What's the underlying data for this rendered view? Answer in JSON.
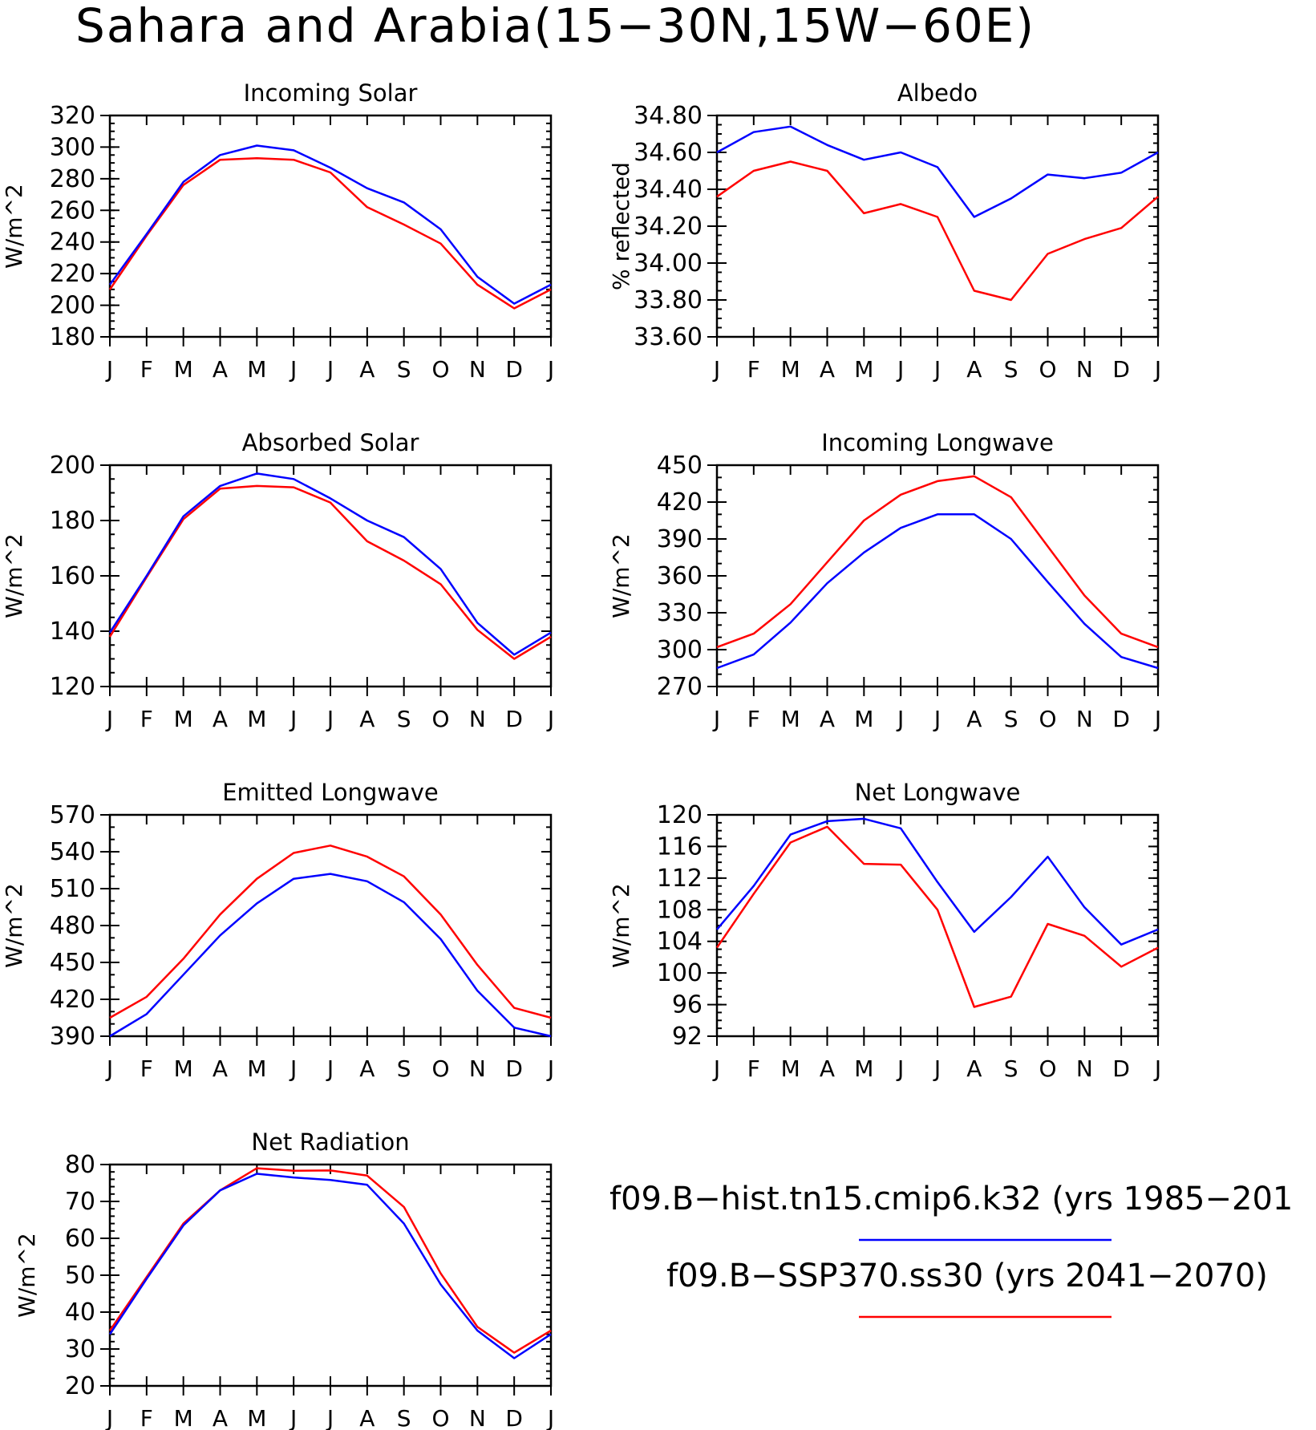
{
  "title": "Sahara and Arabia(15−30N,15W−60E)",
  "months": [
    "J",
    "F",
    "M",
    "A",
    "M",
    "J",
    "J",
    "A",
    "S",
    "O",
    "N",
    "D",
    "J"
  ],
  "legend": [
    {
      "name": "f09.B−hist.tn15.cmip6.k32 (yrs 1985−201",
      "color": "#0000ff"
    },
    {
      "name": "f09.B−SSP370.ss30 (yrs 2041−2070)",
      "color": "#ff0000"
    }
  ],
  "chart_data": [
    {
      "type": "line",
      "title": "Incoming Solar",
      "ylabel": "W/m^2",
      "ylim": [
        180,
        320
      ],
      "yticks": [
        180,
        200,
        220,
        240,
        260,
        280,
        300,
        320
      ],
      "ytick_labels": [
        "180",
        "200",
        "220",
        "240",
        "260",
        "280",
        "300",
        "320"
      ],
      "yminor": 5,
      "series": [
        {
          "color": "#0000ff",
          "values": [
            213,
            245,
            278,
            295,
            301,
            298,
            287,
            274,
            265,
            248,
            218,
            201,
            213
          ]
        },
        {
          "color": "#ff0000",
          "values": [
            210,
            244,
            276,
            292,
            293,
            292,
            284,
            262,
            251,
            239,
            213,
            198,
            210
          ]
        }
      ]
    },
    {
      "type": "line",
      "title": "Albedo",
      "ylabel": "% reflected",
      "ylim": [
        33.6,
        34.8
      ],
      "yticks": [
        33.6,
        33.8,
        34.0,
        34.2,
        34.4,
        34.6,
        34.8
      ],
      "ytick_labels": [
        "33.60",
        "33.80",
        "34.00",
        "34.20",
        "34.40",
        "34.60",
        "34.80"
      ],
      "yminor": 0.05,
      "series": [
        {
          "color": "#0000ff",
          "values": [
            34.6,
            34.71,
            34.74,
            34.64,
            34.56,
            34.6,
            34.52,
            34.25,
            34.35,
            34.48,
            34.46,
            34.49,
            34.6
          ]
        },
        {
          "color": "#ff0000",
          "values": [
            34.36,
            34.5,
            34.55,
            34.5,
            34.27,
            34.32,
            34.25,
            33.85,
            33.8,
            34.05,
            34.13,
            34.19,
            34.36
          ]
        }
      ]
    },
    {
      "type": "line",
      "title": "Absorbed Solar",
      "ylabel": "W/m^2",
      "ylim": [
        120,
        200
      ],
      "yticks": [
        120,
        140,
        160,
        180,
        200
      ],
      "ytick_labels": [
        "120",
        "140",
        "160",
        "180",
        "200"
      ],
      "yminor": 5,
      "series": [
        {
          "color": "#0000ff",
          "values": [
            139.5,
            160,
            181.5,
            192.5,
            197,
            195,
            188,
            180,
            174,
            162.5,
            143,
            131.5,
            139.5
          ]
        },
        {
          "color": "#ff0000",
          "values": [
            138,
            159.5,
            180.5,
            191.5,
            192.5,
            192,
            186.5,
            172.5,
            165.5,
            157,
            140.5,
            130,
            138
          ]
        }
      ]
    },
    {
      "type": "line",
      "title": "Incoming Longwave",
      "ylabel": "W/m^2",
      "ylim": [
        270,
        450
      ],
      "yticks": [
        270,
        300,
        330,
        360,
        390,
        420,
        450
      ],
      "ytick_labels": [
        "270",
        "300",
        "330",
        "360",
        "390",
        "420",
        "450"
      ],
      "yminor": 10,
      "series": [
        {
          "color": "#0000ff",
          "values": [
            285,
            296,
            322,
            354,
            379,
            399,
            410,
            410,
            390,
            355,
            321,
            294,
            285
          ]
        },
        {
          "color": "#ff0000",
          "values": [
            302,
            313,
            337,
            371,
            405,
            426,
            437,
            441,
            424,
            384,
            344,
            313,
            302
          ]
        }
      ]
    },
    {
      "type": "line",
      "title": "Emitted Longwave",
      "ylabel": "W/m^2",
      "ylim": [
        390,
        570
      ],
      "yticks": [
        390,
        420,
        450,
        480,
        510,
        540,
        570
      ],
      "ytick_labels": [
        "390",
        "420",
        "450",
        "480",
        "510",
        "540",
        "570"
      ],
      "yminor": 10,
      "series": [
        {
          "color": "#0000ff",
          "values": [
            390,
            408,
            440,
            472,
            498,
            518,
            522,
            516,
            499,
            469,
            427,
            397,
            390
          ]
        },
        {
          "color": "#ff0000",
          "values": [
            405,
            422,
            453,
            489,
            518,
            539,
            545,
            536,
            520,
            489,
            448,
            413,
            405
          ]
        }
      ]
    },
    {
      "type": "line",
      "title": "Net Longwave",
      "ylabel": "W/m^2",
      "ylim": [
        92,
        120
      ],
      "yticks": [
        92,
        96,
        100,
        104,
        108,
        112,
        116,
        120
      ],
      "ytick_labels": [
        "92",
        "96",
        "100",
        "104",
        "108",
        "112",
        "116",
        "120"
      ],
      "yminor": 1,
      "series": [
        {
          "color": "#0000ff",
          "values": [
            105.5,
            111,
            117.5,
            119.2,
            119.5,
            118.3,
            111.5,
            105.2,
            109.6,
            114.7,
            108.3,
            103.6,
            105.5
          ]
        },
        {
          "color": "#ff0000",
          "values": [
            103.2,
            110,
            116.5,
            118.5,
            113.8,
            113.7,
            108,
            95.7,
            97,
            106.2,
            104.7,
            100.8,
            103.2
          ]
        }
      ]
    },
    {
      "type": "line",
      "title": "Net Radiation",
      "ylabel": "W/m^2",
      "ylim": [
        20,
        80
      ],
      "yticks": [
        20,
        30,
        40,
        50,
        60,
        70,
        80
      ],
      "ytick_labels": [
        "20",
        "30",
        "40",
        "50",
        "60",
        "70",
        "80"
      ],
      "yminor": 2,
      "series": [
        {
          "color": "#0000ff",
          "values": [
            34,
            49,
            63.5,
            73,
            77.5,
            76.5,
            75.8,
            74.5,
            64,
            47.5,
            35,
            27.5,
            34
          ]
        },
        {
          "color": "#ff0000",
          "values": [
            35,
            49.5,
            64,
            73,
            79,
            78.3,
            78.4,
            77,
            68.5,
            50.5,
            36,
            29,
            35
          ]
        }
      ]
    }
  ]
}
